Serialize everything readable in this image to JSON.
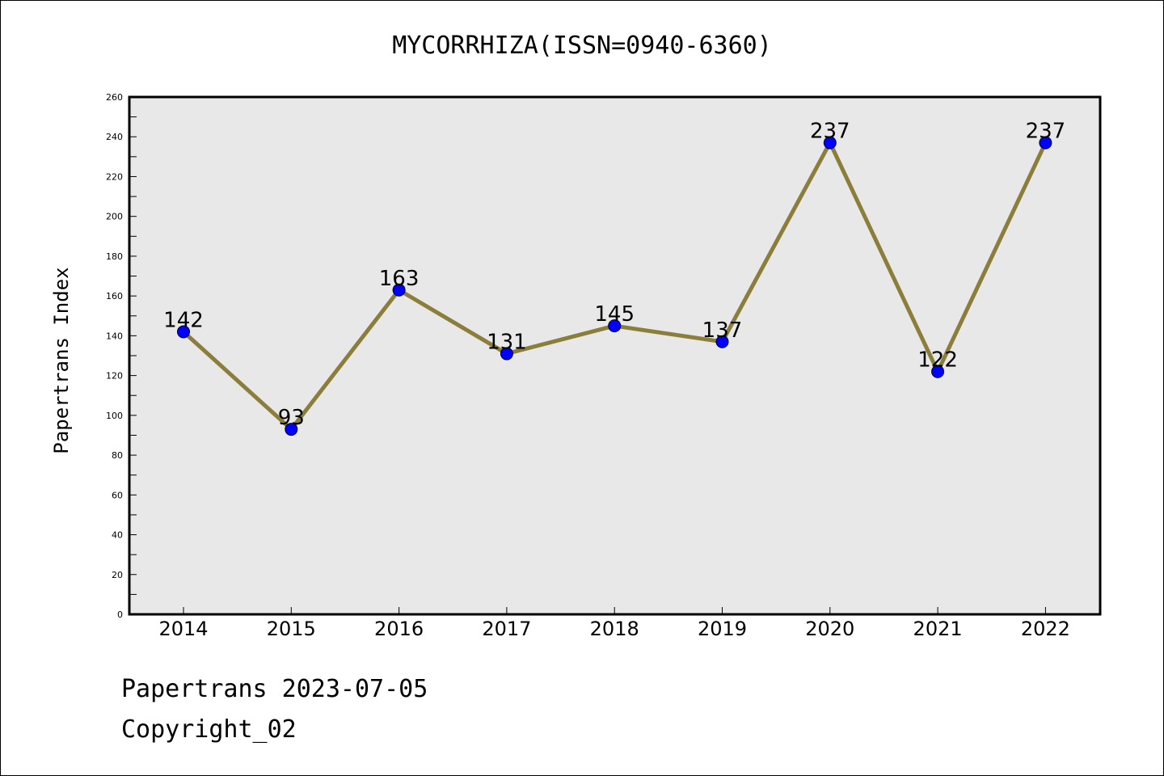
{
  "chart_data": {
    "type": "line",
    "title": "MYCORRHIZA(ISSN=0940-6360)",
    "xlabel": "",
    "ylabel": "Papertrans Index",
    "categories": [
      "2014",
      "2015",
      "2016",
      "2017",
      "2018",
      "2019",
      "2020",
      "2021",
      "2022"
    ],
    "series": [
      {
        "values": [
          142,
          93,
          163,
          131,
          145,
          137,
          237,
          122,
          237
        ]
      }
    ],
    "data_labels": [
      "142",
      "93",
      "163",
      "131",
      "145",
      "137",
      "237",
      "122",
      "237"
    ],
    "ylim": [
      0,
      260
    ],
    "yticks": [
      "0",
      "20",
      "40",
      "60",
      "80",
      "100",
      "120",
      "140",
      "160",
      "180",
      "200",
      "220",
      "240",
      "260"
    ],
    "grid": false,
    "legend": "none",
    "colors": {
      "line": "#8b7d3a",
      "marker": "#0000ff",
      "plot_bg": "#e8e8e8"
    }
  },
  "footer": {
    "line1": "Papertrans 2023-07-05",
    "line2": "Copyright_02"
  }
}
